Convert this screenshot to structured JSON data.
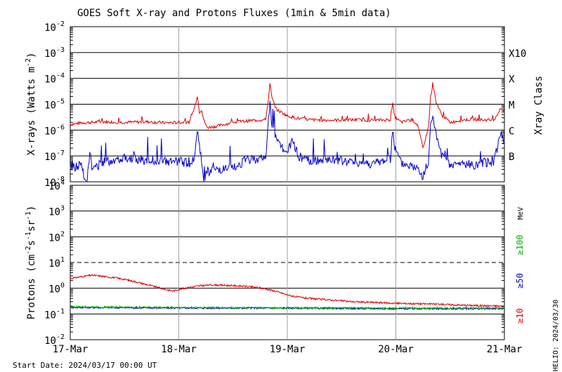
{
  "title": "GOES Soft X-ray and Protons Fluxes   (1min & 5min data)",
  "start_date": "Start Date: 2024/03/17 00:00 UT",
  "helio_label": "HELIO: 2024/03/30",
  "colors": {
    "red": "#e00000",
    "blue": "#0000d0",
    "green": "#00b000",
    "grid": "#000000",
    "day_line": "#a0a0a0"
  },
  "chart_data": [
    {
      "type": "line",
      "panel": "xray",
      "ylabel": "X-rays (Watts m⁻²)",
      "ylabel_parts": {
        "main": "X-rays (Watts m",
        "sup": "-2",
        "end": ")"
      },
      "yscale": "log",
      "ylim": [
        1e-08,
        0.01
      ],
      "yticks": [
        {
          "base": "10",
          "exp": "-2"
        },
        {
          "base": "10",
          "exp": "-3"
        },
        {
          "base": "10",
          "exp": "-4"
        },
        {
          "base": "10",
          "exp": "-5"
        },
        {
          "base": "10",
          "exp": "-6"
        },
        {
          "base": "10",
          "exp": "-7"
        },
        {
          "base": "10",
          "exp": "-8"
        }
      ],
      "right_axis_label": "Xray Class",
      "classes": [
        "X10",
        "X",
        "M",
        "C",
        "B"
      ],
      "x_days": [
        0,
        4
      ],
      "series": [
        {
          "color": "red",
          "baseline_exp": -5.7,
          "points": [
            [
              0,
              -5.78
            ],
            [
              0.1,
              -5.72
            ],
            [
              0.2,
              -5.7
            ],
            [
              0.3,
              -5.68
            ],
            [
              0.5,
              -5.7
            ],
            [
              0.7,
              -5.68
            ],
            [
              0.9,
              -5.72
            ],
            [
              1.0,
              -5.7
            ],
            [
              1.1,
              -5.7
            ],
            [
              1.15,
              -5.05
            ],
            [
              1.17,
              -4.65
            ],
            [
              1.19,
              -5.3
            ],
            [
              1.21,
              -5.2
            ],
            [
              1.23,
              -5.6
            ],
            [
              1.26,
              -5.9
            ],
            [
              1.35,
              -5.85
            ],
            [
              1.5,
              -5.7
            ],
            [
              1.7,
              -5.62
            ],
            [
              1.8,
              -5.6
            ],
            [
              1.82,
              -5.0
            ],
            [
              1.84,
              -4.22
            ],
            [
              1.86,
              -4.8
            ],
            [
              1.9,
              -5.2
            ],
            [
              2.0,
              -5.45
            ],
            [
              2.1,
              -5.55
            ],
            [
              2.2,
              -5.6
            ],
            [
              2.4,
              -5.62
            ],
            [
              2.6,
              -5.6
            ],
            [
              2.8,
              -5.62
            ],
            [
              2.95,
              -5.6
            ],
            [
              2.97,
              -4.98
            ],
            [
              2.99,
              -5.5
            ],
            [
              3.05,
              -5.7
            ],
            [
              3.15,
              -5.6
            ],
            [
              3.2,
              -5.8
            ],
            [
              3.25,
              -6.7
            ],
            [
              3.3,
              -5.9
            ],
            [
              3.32,
              -4.8
            ],
            [
              3.34,
              -4.2
            ],
            [
              3.37,
              -4.9
            ],
            [
              3.42,
              -5.4
            ],
            [
              3.5,
              -5.7
            ],
            [
              3.6,
              -5.62
            ],
            [
              3.7,
              -5.58
            ],
            [
              3.8,
              -5.6
            ],
            [
              3.9,
              -5.62
            ],
            [
              3.97,
              -5.15
            ],
            [
              4.0,
              -5.3
            ]
          ]
        },
        {
          "color": "blue",
          "baseline_exp": -7.4,
          "points": [
            [
              0,
              -7.4
            ],
            [
              0.05,
              -7.45
            ],
            [
              0.1,
              -7.3
            ],
            [
              0.13,
              -7.75
            ],
            [
              0.15,
              -8.1
            ],
            [
              0.18,
              -6.85
            ],
            [
              0.2,
              -7.5
            ],
            [
              0.3,
              -7.25
            ],
            [
              0.4,
              -7.15
            ],
            [
              0.5,
              -7.05
            ],
            [
              0.6,
              -7.1
            ],
            [
              0.7,
              -7.2
            ],
            [
              0.8,
              -7.15
            ],
            [
              0.9,
              -7.25
            ],
            [
              1.0,
              -7.2
            ],
            [
              1.1,
              -7.3
            ],
            [
              1.15,
              -7.0
            ],
            [
              1.17,
              -5.9
            ],
            [
              1.19,
              -6.6
            ],
            [
              1.21,
              -7.1
            ],
            [
              1.23,
              -8.1
            ],
            [
              1.26,
              -7.6
            ],
            [
              1.35,
              -7.55
            ],
            [
              1.5,
              -7.5
            ],
            [
              1.6,
              -7.2
            ],
            [
              1.7,
              -7.1
            ],
            [
              1.8,
              -7.1
            ],
            [
              1.82,
              -5.9
            ],
            [
              1.84,
              -5.0
            ],
            [
              1.86,
              -5.8
            ],
            [
              1.9,
              -6.4
            ],
            [
              2.0,
              -6.9
            ],
            [
              2.05,
              -6.4
            ],
            [
              2.1,
              -7.0
            ],
            [
              2.2,
              -7.2
            ],
            [
              2.4,
              -7.15
            ],
            [
              2.6,
              -7.25
            ],
            [
              2.8,
              -7.3
            ],
            [
              2.95,
              -7.1
            ],
            [
              2.97,
              -5.95
            ],
            [
              2.99,
              -6.7
            ],
            [
              3.05,
              -7.3
            ],
            [
              3.15,
              -7.4
            ],
            [
              3.2,
              -7.5
            ],
            [
              3.25,
              -7.8
            ],
            [
              3.3,
              -7.3
            ],
            [
              3.32,
              -5.85
            ],
            [
              3.34,
              -5.4
            ],
            [
              3.37,
              -6.2
            ],
            [
              3.42,
              -7.0
            ],
            [
              3.5,
              -7.4
            ],
            [
              3.6,
              -7.3
            ],
            [
              3.7,
              -7.35
            ],
            [
              3.8,
              -7.3
            ],
            [
              3.9,
              -7.2
            ],
            [
              3.97,
              -6.1
            ],
            [
              4.0,
              -6.5
            ]
          ]
        }
      ]
    },
    {
      "type": "line",
      "panel": "protons",
      "ylabel": "Protons (cm⁻²s⁻¹sr⁻¹)",
      "ylabel_parts": {
        "a": "Protons (cm",
        "s1": "-2",
        "b": "s",
        "s2": "-1",
        "c": "sr",
        "s3": "-1",
        "d": ")"
      },
      "yscale": "log",
      "ylim": [
        0.01,
        10000.0
      ],
      "yticks": [
        {
          "base": "10",
          "exp": "4"
        },
        {
          "base": "10",
          "exp": "3"
        },
        {
          "base": "10",
          "exp": "2"
        },
        {
          "base": "10",
          "exp": "1"
        },
        {
          "base": "10",
          "exp": "0"
        },
        {
          "base": "10",
          "exp": "-1"
        },
        {
          "base": "10",
          "exp": "-2"
        }
      ],
      "ytick_plain": [
        "10⁴",
        "10³",
        "10²",
        "10¹",
        "10⁰",
        "10⁻¹",
        "10⁻²"
      ],
      "threshold": 10,
      "energy_labels": {
        "unit": "MeV",
        "ge100": "≥100",
        "ge50": "≥50",
        "ge10": "≥10"
      },
      "x_days": [
        0,
        4
      ],
      "series": [
        {
          "name": "≥10",
          "color": "red",
          "points": [
            [
              0,
              2.4
            ],
            [
              0.1,
              2.8
            ],
            [
              0.2,
              3.2
            ],
            [
              0.3,
              2.9
            ],
            [
              0.4,
              2.6
            ],
            [
              0.5,
              2.2
            ],
            [
              0.6,
              1.8
            ],
            [
              0.7,
              1.4
            ],
            [
              0.8,
              1.1
            ],
            [
              0.9,
              0.85
            ],
            [
              0.95,
              0.78
            ],
            [
              1.0,
              0.9
            ],
            [
              1.1,
              1.1
            ],
            [
              1.2,
              1.25
            ],
            [
              1.3,
              1.35
            ],
            [
              1.4,
              1.3
            ],
            [
              1.5,
              1.25
            ],
            [
              1.6,
              1.2
            ],
            [
              1.7,
              1.1
            ],
            [
              1.8,
              0.95
            ],
            [
              1.9,
              0.75
            ],
            [
              2.0,
              0.55
            ],
            [
              2.1,
              0.45
            ],
            [
              2.2,
              0.4
            ],
            [
              2.4,
              0.35
            ],
            [
              2.6,
              0.3
            ],
            [
              2.8,
              0.28
            ],
            [
              3.0,
              0.26
            ],
            [
              3.2,
              0.25
            ],
            [
              3.4,
              0.24
            ],
            [
              3.6,
              0.22
            ],
            [
              3.8,
              0.21
            ],
            [
              4.0,
              0.2
            ]
          ]
        },
        {
          "name": "≥50",
          "color": "blue",
          "points": [
            [
              0,
              0.18
            ],
            [
              1,
              0.17
            ],
            [
              2,
              0.17
            ],
            [
              3,
              0.16
            ],
            [
              4,
              0.16
            ]
          ]
        },
        {
          "name": "≥100",
          "color": "green",
          "points": [
            [
              0,
              0.19
            ],
            [
              1,
              0.18
            ],
            [
              2,
              0.17
            ],
            [
              3,
              0.17
            ],
            [
              4,
              0.17
            ]
          ]
        }
      ]
    }
  ],
  "x_axis": {
    "tick_labels": [
      "17-Mar",
      "18-Mar",
      "19-Mar",
      "20-Mar",
      "21-Mar"
    ]
  }
}
